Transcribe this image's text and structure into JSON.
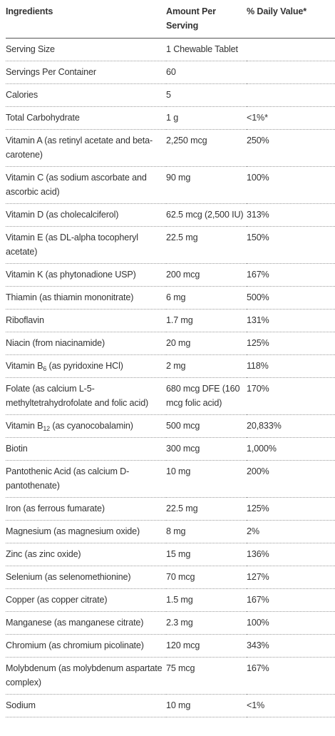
{
  "table": {
    "header": [
      "Ingredients",
      "Amount Per Serving",
      "% Daily Value*"
    ],
    "rows": [
      [
        "Serving Size",
        "1 Chewable Tablet",
        ""
      ],
      [
        "Servings Per Container",
        "60",
        ""
      ],
      [
        "Calories",
        "5",
        ""
      ],
      [
        "Total Carbohydrate",
        "1 g",
        "<1%*"
      ],
      [
        "Vitamin A (as retinyl acetate and beta-carotene)",
        "2,250 mcg",
        "250%"
      ],
      [
        "Vitamin C (as sodium ascorbate and ascorbic acid)",
        "90 mg",
        "100%"
      ],
      [
        "Vitamin D (as cholecalciferol)",
        "62.5 mcg (2,500 IU)",
        "313%"
      ],
      [
        "Vitamin E (as DL-alpha tocopheryl acetate)",
        "22.5 mg",
        "150%"
      ],
      [
        "Vitamin K (as phytonadione USP)",
        "200 mcg",
        "167%"
      ],
      [
        "Thiamin (as thiamin mononitrate)",
        "6 mg",
        "500%"
      ],
      [
        "Riboflavin",
        "1.7 mg",
        "131%"
      ],
      [
        "Niacin (from niacinamide)",
        "20 mg",
        "125%"
      ],
      [
        {
          "before": "Vitamin B",
          "sub": "6",
          "after": " (as pyridoxine HCl)"
        },
        "2 mg",
        "118%"
      ],
      [
        "Folate (as calcium L-5-methyltetrahydrofolate and folic acid)",
        "680 mcg DFE (160 mcg folic acid)",
        "170%"
      ],
      [
        {
          "before": "Vitamin B",
          "sub": "12",
          "after": " (as cyanocobalamin)"
        },
        "500 mcg",
        "20,833%"
      ],
      [
        "Biotin",
        "300 mcg",
        "1,000%"
      ],
      [
        "Pantothenic Acid (as calcium D-pantothenate)",
        "10 mg",
        "200%"
      ],
      [
        "Iron (as ferrous fumarate)",
        "22.5 mg",
        "125%"
      ],
      [
        "Magnesium (as magnesium oxide)",
        "8 mg",
        "2%"
      ],
      [
        "Zinc (as zinc oxide)",
        "15 mg",
        "136%"
      ],
      [
        "Selenium (as selenomethionine)",
        "70 mcg",
        "127%"
      ],
      [
        "Copper (as copper citrate)",
        "1.5 mg",
        "167%"
      ],
      [
        "Manganese (as manganese citrate)",
        "2.3 mg",
        "100%"
      ],
      [
        "Chromium (as chromium picolinate)",
        "120 mcg",
        "343%"
      ],
      [
        "Molybdenum (as molybdenum aspartate complex)",
        "75 mcg",
        "167%"
      ],
      [
        "Sodium",
        "10 mg",
        "<1%"
      ]
    ]
  }
}
